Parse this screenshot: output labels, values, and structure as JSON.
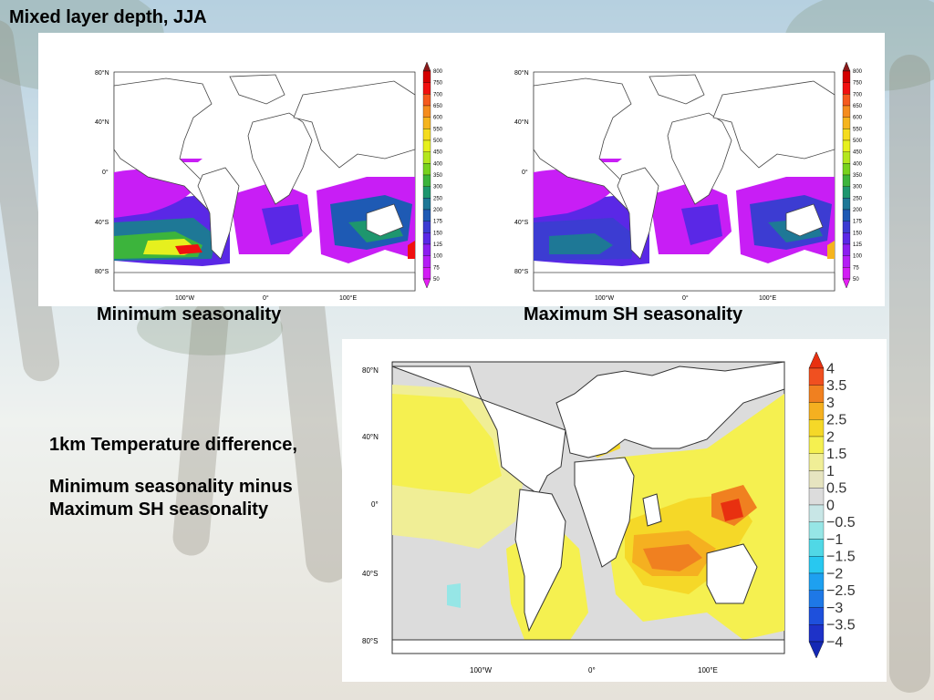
{
  "title": "Mixed layer depth, JJA",
  "panels": {
    "left": {
      "caption": "Minimum seasonality",
      "lat_ticks": [
        "80°N",
        "40°N",
        "0°",
        "40°S",
        "80°S"
      ],
      "lon_ticks": [
        "100°W",
        "0°",
        "100°E"
      ]
    },
    "right": {
      "caption": "Maximum SH seasonality",
      "lat_ticks": [
        "80°N",
        "40°N",
        "0°",
        "40°S",
        "80°S"
      ],
      "lon_ticks": [
        "100°W",
        "0°",
        "100°E"
      ]
    },
    "bottom": {
      "lat_ticks": [
        "80°N",
        "40°N",
        "0°",
        "40°S",
        "80°S"
      ],
      "lon_ticks": [
        "100°W",
        "0°",
        "100°E"
      ]
    }
  },
  "colorbar_top": {
    "labels": [
      "800",
      "750",
      "700",
      "650",
      "600",
      "550",
      "500",
      "450",
      "400",
      "350",
      "300",
      "250",
      "200",
      "175",
      "150",
      "125",
      "100",
      "75",
      "50"
    ],
    "colors": [
      "#8b1a1a",
      "#d40000",
      "#f01010",
      "#f55a1e",
      "#f58c1e",
      "#f5b41e",
      "#f5dc1e",
      "#e6f01e",
      "#b4e61e",
      "#78d21e",
      "#3cb43c",
      "#1e966e",
      "#1e7896",
      "#1e5ab4",
      "#3c3cd2",
      "#5a28e6",
      "#8c1ef0",
      "#b41ef5",
      "#d21ef5",
      "#e61ef5"
    ]
  },
  "colorbar_bottom": {
    "labels": [
      "4",
      "3.5",
      "3",
      "2.5",
      "2",
      "1.5",
      "1",
      "0.5",
      "0",
      "−0.5",
      "−1",
      "−1.5",
      "−2",
      "−2.5",
      "−3",
      "−3.5",
      "−4"
    ],
    "colors": [
      "#e83010",
      "#f05020",
      "#f08020",
      "#f5b020",
      "#f5d828",
      "#f5f050",
      "#f0ee96",
      "#e6e4c0",
      "#dcdcdc",
      "#c8e6e6",
      "#96e6e6",
      "#50d8e6",
      "#28c8f0",
      "#1ea0f0",
      "#1e78e6",
      "#1e50dc",
      "#1e32c8",
      "#1428b4"
    ]
  },
  "side_text": {
    "line1": "1km Temperature difference,",
    "line2": "Minimum seasonality minus",
    "line3": "Maximum SH seasonality"
  }
}
